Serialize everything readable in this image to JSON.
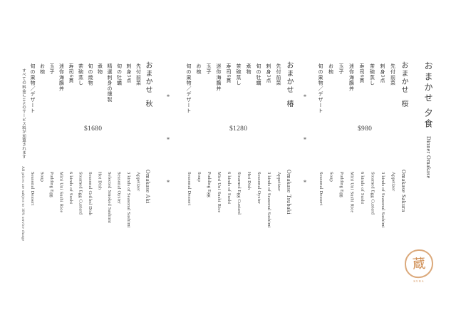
{
  "title": {
    "jp_prefix": "おまかせ",
    "jp_name": "夕食",
    "en": "Dinner Omakase"
  },
  "menus": [
    {
      "name": "sakura",
      "heading_jp_prefix": "おまかせ",
      "heading_jp_name": "桜",
      "heading_en": "Omakase Sakura",
      "price": "$980",
      "items_jp": [
        "先付前菜",
        "刺身3点",
        "茶碗蒸し",
        "寿司6貫",
        "迷你海膽丼",
        "玉子",
        "お椀",
        "旬の果物／デザート"
      ],
      "items_en": [
        "Appetizer",
        "3 kinds of Seasonal Sashimi",
        "Steamed Egg Custard",
        "6 kinds of Sushi",
        "Mini Uni Sushi Rice",
        "Pudding Egg",
        "Soup",
        "Seasonal Dessert"
      ]
    },
    {
      "name": "tsubaki",
      "heading_jp_prefix": "おまかせ",
      "heading_jp_name": "椿",
      "heading_en": "Omakase Tsubaki",
      "price": "$1280",
      "items_jp": [
        "先付前菜",
        "刺身3点",
        "旬の牡蠣",
        "煮物",
        "茶碗蒸し",
        "寿司6貫",
        "迷你海膽丼",
        "玉子",
        "お椀",
        "旬の果物／デザート"
      ],
      "items_en": [
        "Appetizer",
        "3 kinds of Seasonal Sashimi",
        "Seasonal Oyster",
        "Hot Dish",
        "Steamed Egg Custard",
        "6 kinds of Sushi",
        "Mini Uni Sushi Rice",
        "Pudding Egg",
        "Soup",
        "Seasonal Dessert"
      ]
    },
    {
      "name": "aki",
      "heading_jp_prefix": "おまかせ",
      "heading_jp_name": "秋",
      "heading_en": "Omakase Aki",
      "price": "$1680",
      "items_jp": [
        "先付前菜",
        "刺身3点",
        "旬の牡蠣",
        "精選刺身の燻製",
        "煮物",
        "旬の焼物",
        "茶碗蒸し",
        "寿司6貫",
        "迷你海膽丼",
        "玉子",
        "お椀",
        "旬の果物／デザート"
      ],
      "items_en": [
        "Appetizer",
        "3 kinds of Seasonal Sashimi",
        "Seasonal Oyster",
        "Selected Smoked Sashimi",
        "Hot Dish",
        "Seasonal Grilled Dish",
        "Steamed Egg Custard",
        "6 kinds of Sushi",
        "Mini Uni Sushi Rice",
        "Pudding Egg",
        "Soup",
        "Seasonal Dessert"
      ]
    }
  ],
  "separator": {
    "glyph": "*"
  },
  "disclaimer": {
    "jp": "すべての料金に10%のサービス料が加算されます",
    "en": "All prices are subject to 10% service charge"
  },
  "logo": {
    "character": "蔵",
    "caption": "KURA",
    "color": "#d2935a"
  },
  "colors": {
    "text": "#3e3e3e",
    "background": "#ffffff"
  }
}
